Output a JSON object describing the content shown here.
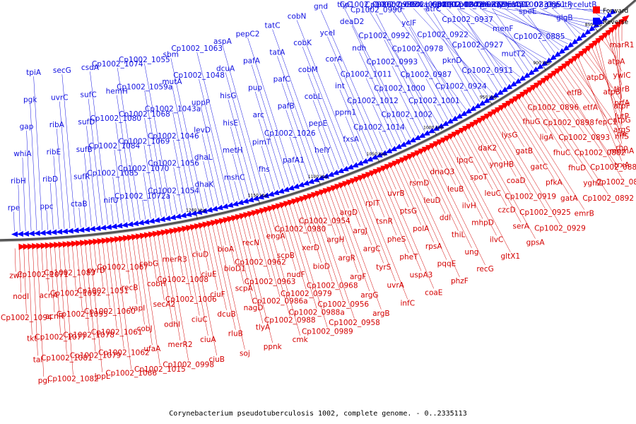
{
  "caption": "Corynebacterium pseudotuberculosis 1002, complete genome. - 0..2335113",
  "legend": {
    "forward_label": "Forward",
    "reverse_label": "Reverse",
    "forward_color": "#ff0000",
    "reverse_color": "#0000ff"
  },
  "scale_labels": [
    "850 kbp",
    "900 kbp",
    "950 kbp",
    "1000 kbp",
    "1050 kbp",
    "1100 kbp",
    "1150 kbp",
    "1200 kbp"
  ],
  "reverse_genes": [
    "rpe",
    "ribH",
    "whiA",
    "gap",
    "pgk",
    "tpiA",
    "ppc",
    "ribD",
    "ribE",
    "ribA",
    "uvrC",
    "secG",
    "ctaB",
    "sufR",
    "sufB",
    "sufD",
    "sufC",
    "csdA",
    "nifU",
    "Cp1002_1085",
    "Cp1002_1084",
    "Cp1002_1080",
    "hemH",
    "Cp1002_1074",
    "Cp1002_1072a",
    "Cp1002_1070",
    "Cp1002_1069",
    "Cp1002_1068",
    "Cp1002_1059a",
    "Cp1002_1055",
    "Cp1002_1054",
    "Cp1002_1056",
    "Cp1002_1046",
    "Cp1002_1043a",
    "mutA",
    "sbm",
    "dhaK",
    "dhaL",
    "levD",
    "uppP",
    "Cp1002_1048",
    "Cp1002_1063",
    "mshC",
    "metH",
    "hisE",
    "hisG",
    "dcuA",
    "aspA",
    "fhs",
    "pimT",
    "arc",
    "pup",
    "pafA",
    "pepC2",
    "pafA1",
    "Cp1002_1026",
    "pafB",
    "pafC",
    "tatA",
    "tatC",
    "helY",
    "pepE",
    "cobL",
    "cobM",
    "cobK",
    "cobN",
    "fxsA",
    "ppm1",
    "int",
    "corA",
    "yceI",
    "gnd",
    "Cp1002_1014",
    "Cp1002_1012",
    "Cp1002_1011",
    "ndh",
    "deaD2",
    "tlyC",
    "Cp1002_1002",
    "Cp1002_1000",
    "Cp1002_0993",
    "Cp1002_0992",
    "Cp1002_0990",
    "Cp1002_0986b",
    "Cp1002_1001",
    "Cp1002_0987",
    "Cp1002_0978",
    "yclF",
    "Cp1002_0936a",
    "Cp1002_0935",
    "Cp1002_0924",
    "pknD",
    "Cp1002_0922",
    "atrC",
    "Cp1002_0908a",
    "doxX",
    "Cp1002_0911",
    "Cp1002_0927",
    "Cp1002_0937",
    "Cp1002_0942",
    "ltbR",
    "bioB2",
    "mutT2",
    "menF",
    "mscS",
    "cfp6",
    "Cp1002_0867",
    "Cp1002_0872",
    "Cp1002_0885",
    "speE",
    "mshD",
    "lysE",
    "dnaQ2",
    "Cp1002_0873",
    "glgB",
    "glgE",
    "Cp1002_0851",
    "Cp1002_0833",
    "lcfA2",
    "lutA",
    "lutB",
    "yceI",
    "putP"
  ],
  "forward_genes": [
    "zwf",
    "nodI",
    "Cp1002_1094",
    "tkt",
    "tal",
    "pgl",
    "Cp1002_1071",
    "acnA",
    "acnR",
    "Cp1002_1077",
    "Cp1002_1081",
    "Cp1002_1082",
    "Cp1002_1083",
    "Cp1002_1092",
    "Cp1002_1095",
    "Cp1002_1078",
    "Cp1002_1079",
    "lppL",
    "pyrD",
    "Cp1002_1051",
    "Cp1002_1060",
    "Cp1002_1061",
    "Cp1002_1062",
    "Cp1002_1066",
    "Cp1002_1067",
    "recB",
    "vapI",
    "cobJ",
    "ufaA",
    "Cp1002_1015",
    "cobG",
    "cobH",
    "secA2",
    "odhI",
    "merR2",
    "Cp1002_0998",
    "merR3",
    "Cp1002_1008",
    "Cp1002_1006",
    "ciuC",
    "ciuA",
    "ciuB",
    "ciuD",
    "ciuE",
    "ciuF",
    "dcuB",
    "rluB",
    "soj",
    "bioA",
    "bioD1",
    "scpA",
    "nagD",
    "tlyA",
    "ppnk",
    "recN",
    "Cp1002_0962",
    "Cp1002_0963",
    "Cp1002_0986a",
    "Cp1002_0988",
    "cmk",
    "engA",
    "scpB",
    "nudF",
    "Cp1002_0979",
    "Cp1002_0988a",
    "Cp1002_0989",
    "Cp1002_0980",
    "xerD",
    "bioD",
    "Cp1002_0968",
    "Cp1002_0956",
    "Cp1002_0958",
    "Cp1002_0954",
    "argH",
    "argR",
    "argF",
    "argG",
    "argB",
    "argD",
    "argJ",
    "argC",
    "tyrS",
    "uvrA",
    "infC",
    "rplT",
    "tsnR",
    "pheS",
    "pheT",
    "uspA3",
    "coaE",
    "uvrB",
    "ptsG",
    "polA",
    "rpsA",
    "pqqE",
    "phzF",
    "rsmD",
    "leuD",
    "ddl",
    "thiL",
    "ung",
    "recG",
    "dnaQ3",
    "leuB",
    "ilvH",
    "mhpD",
    "ilvC",
    "gltX1",
    "lpqC",
    "spoT",
    "leuC",
    "czcD",
    "serA",
    "gpsA",
    "daK2",
    "yngHB",
    "coaD",
    "Cp1002_0919",
    "Cp1002_0925",
    "Cp1002_0929",
    "lysG",
    "gatB",
    "gatC",
    "pfkA",
    "gatA",
    "emrB",
    "fhuG",
    "ligA",
    "fhuC",
    "fhuD",
    "yghZ",
    "Cp1002_0892",
    "Cp1002_0896",
    "Cp1002_0898",
    "Cp1002_0893",
    "Cp1002_0882",
    "Cp1002_0883",
    "Cp1002_0864",
    "etfB",
    "etfA",
    "fepC1",
    "nifS",
    "mnmA",
    "trxA",
    "atpD",
    "atpB",
    "atpF",
    "atpG",
    "rfe",
    "rho",
    "atpA",
    "ywlC",
    "thrB",
    "prfA",
    "lutP",
    "argS",
    "marR1"
  ]
}
